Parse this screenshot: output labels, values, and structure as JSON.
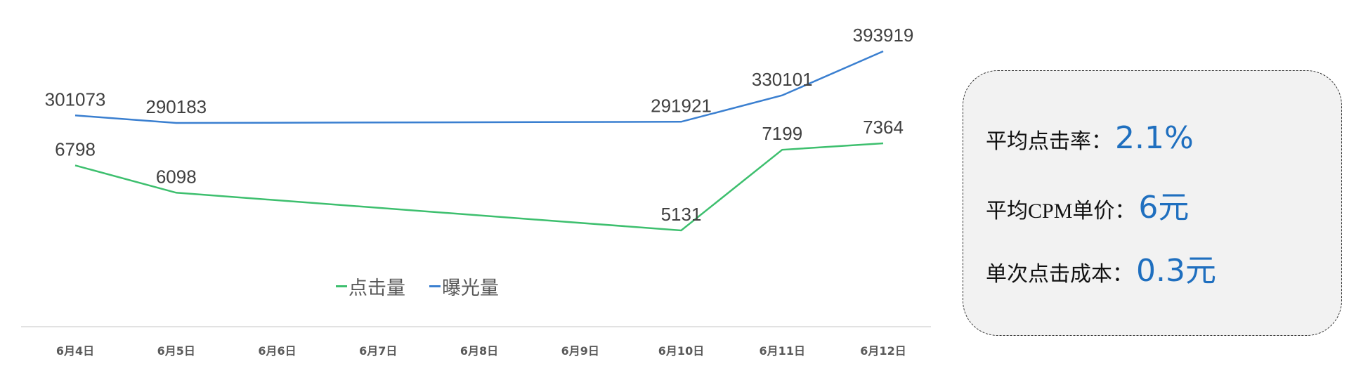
{
  "chart_data": {
    "type": "line",
    "categories": [
      "6月4日",
      "6月5日",
      "6月6日",
      "6月7日",
      "6月8日",
      "6月9日",
      "6月10日",
      "6月11日",
      "6月12日"
    ],
    "series": [
      {
        "name": "点击量",
        "color": "#3dbf6e",
        "values": [
          6798,
          6098,
          null,
          null,
          null,
          null,
          5131,
          7199,
          7364
        ]
      },
      {
        "name": "曝光量",
        "color": "#3a7fd0",
        "values": [
          301073,
          290183,
          null,
          null,
          null,
          null,
          291921,
          330101,
          393919
        ]
      }
    ],
    "legend_position": "bottom-inside",
    "grid": false,
    "data_labels": true,
    "gaps": "connected"
  },
  "legend": {
    "items": [
      "点击量",
      "曝光量"
    ]
  },
  "summary": {
    "items": [
      {
        "label": "平均点击率：",
        "value": "2.1%"
      },
      {
        "label": "平均CPM单价：",
        "value": "6元"
      },
      {
        "label": "单次点击成本：",
        "value": "0.3元"
      }
    ]
  }
}
